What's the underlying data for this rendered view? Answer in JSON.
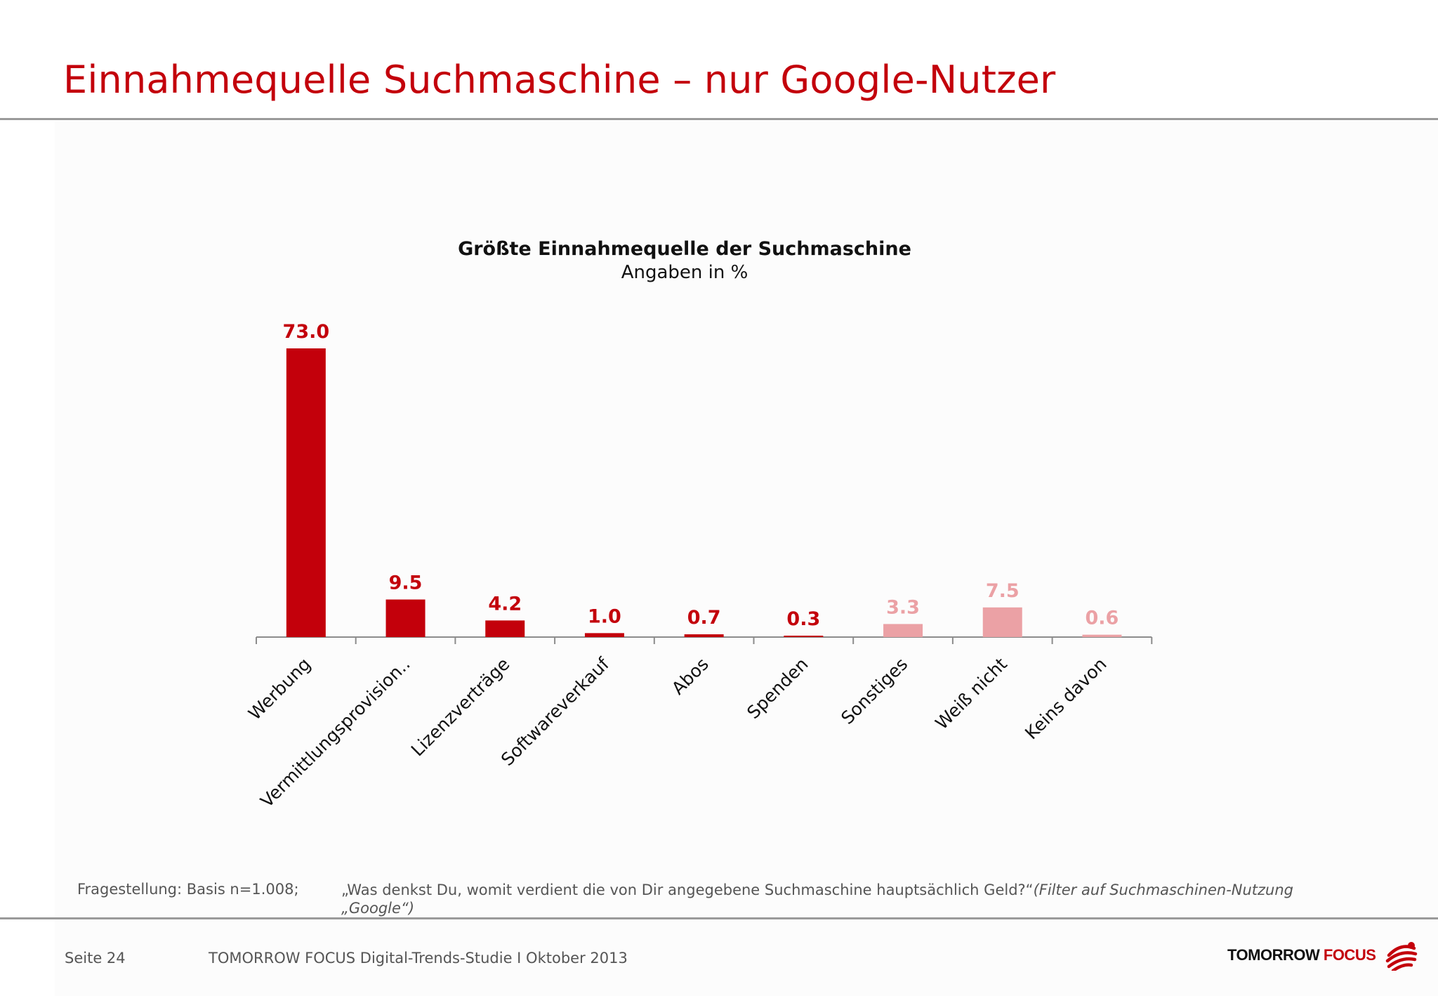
{
  "slide": {
    "title": "Einnahmequelle Suchmaschine – nur Google-Nutzer",
    "note_label": "Fragestellung: Basis n=1.008;",
    "note_question": "„Was denkst Du, womit verdient die von Dir angegebene Suchmaschine hauptsächlich Geld?“",
    "note_filter": "(Filter auf Suchmaschinen-Nutzung „Google“)",
    "footer_page": "Seite 24",
    "footer_study": "TOMORROW FOCUS Digital-Trends-Studie I Oktober 2013",
    "logo_word1": "TOMORROW",
    "logo_word2": "FOCUS",
    "accent_color": "#c3000b",
    "light_color": "#eba1a5"
  },
  "chart_data": {
    "type": "bar",
    "title": "Größte Einnahmequelle der Suchmaschine",
    "subtitle": "Angaben in %",
    "xlabel": "",
    "ylabel": "",
    "ylim": [
      0,
      73
    ],
    "grid": false,
    "legend": "none",
    "categories": [
      "Werbung",
      "Vermittlungsprovision..",
      "Lizenzverträge",
      "Softwareverkauf",
      "Abos",
      "Spenden",
      "Sonstiges",
      "Weiß nicht",
      "Keins davon"
    ],
    "values": [
      73.0,
      9.5,
      4.2,
      1.0,
      0.7,
      0.3,
      3.3,
      7.5,
      0.6
    ],
    "labels": [
      "73.0",
      "9.5",
      "4.2",
      "1.0",
      "0.7",
      "0.3",
      "3.3",
      "7.5",
      "0.6"
    ],
    "colors": [
      "#c3000b",
      "#c3000b",
      "#c3000b",
      "#c3000b",
      "#c3000b",
      "#c3000b",
      "#eba1a5",
      "#eba1a5",
      "#eba1a5"
    ]
  }
}
